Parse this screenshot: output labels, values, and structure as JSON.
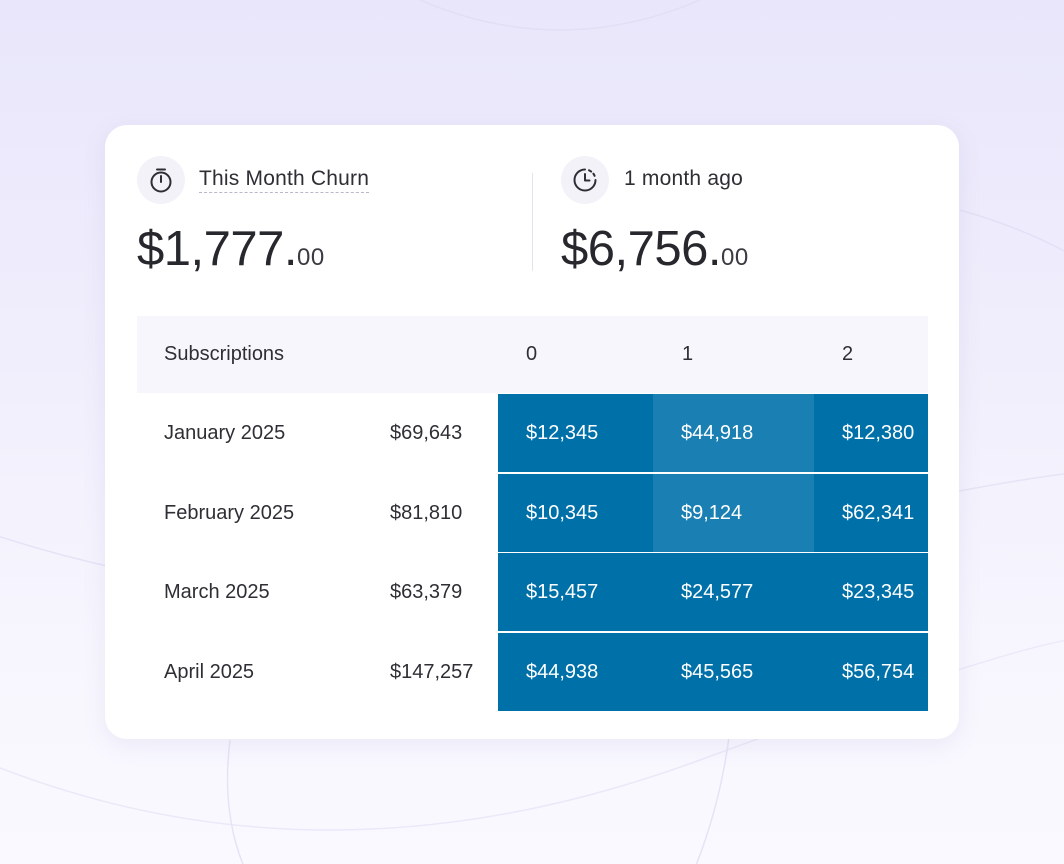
{
  "metrics": {
    "current": {
      "label": "This Month Churn",
      "value_main": "$1,777.",
      "value_cents": "00",
      "icon": "stopwatch-icon"
    },
    "previous": {
      "label": "1 month ago",
      "value_main": "$6,756.",
      "value_cents": "00",
      "icon": "clock-history-icon"
    }
  },
  "table": {
    "header": {
      "first": "Subscriptions",
      "columns": [
        "0",
        "1",
        "2"
      ]
    },
    "rows": [
      {
        "label": "January 2025",
        "total": "$69,643",
        "cells": [
          "$12,345",
          "$44,918",
          "$12,380"
        ]
      },
      {
        "label": "February 2025",
        "total": "$81,810",
        "cells": [
          "$10,345",
          "$9,124",
          "$62,341"
        ]
      },
      {
        "label": "March 2025",
        "total": "$63,379",
        "cells": [
          "$15,457",
          "$24,577",
          "$23,345"
        ]
      },
      {
        "label": "April 2025",
        "total": "$147,257",
        "cells": [
          "$44,938",
          "$45,565",
          "$56,754"
        ]
      }
    ]
  },
  "colors": {
    "heat_dark": "#0070a9",
    "heat_light": "#1a7fb2"
  }
}
